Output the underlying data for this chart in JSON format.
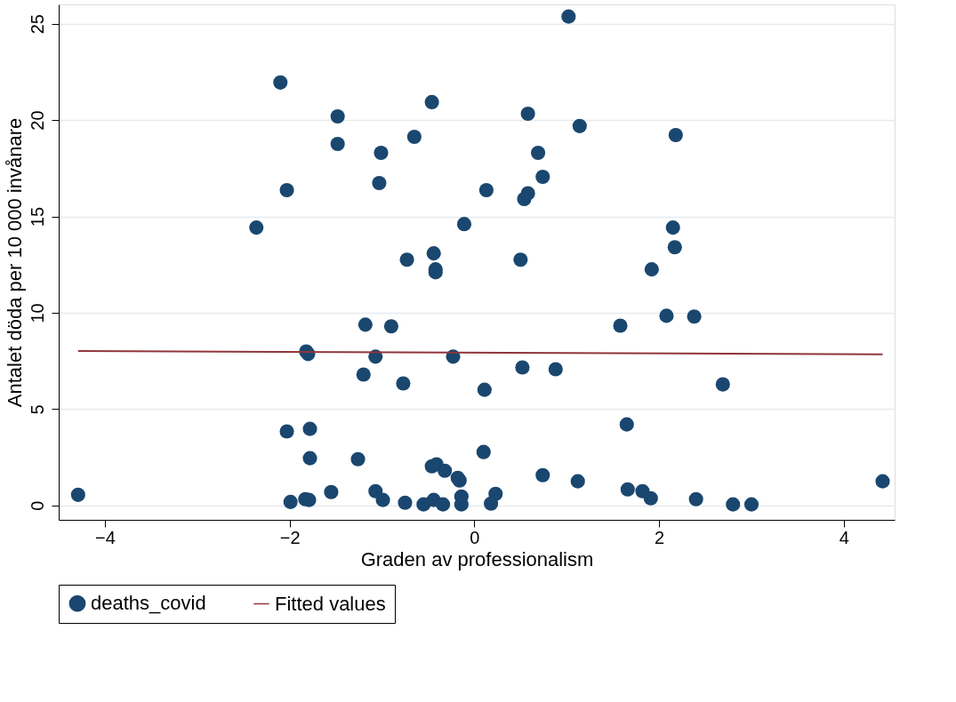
{
  "chart_data": {
    "type": "scatter",
    "xlabel": "Graden av professionalism",
    "ylabel": "Antalet döda per 10 000 invånare",
    "xlim": [
      -4.5,
      4.55
    ],
    "ylim": [
      -0.75,
      26
    ],
    "xticks": [
      -4,
      -2,
      0,
      2,
      4
    ],
    "yticks": [
      0,
      5,
      10,
      15,
      20,
      25
    ],
    "grid": "y",
    "legend": "bottom",
    "marker": "circle",
    "series": [
      {
        "name": "deaths_covid",
        "color": "#1a476f",
        "type": "scatter",
        "x": [
          -4.29,
          -2.1,
          -2.36,
          -2.03,
          -2.03,
          -1.99,
          -1.83,
          -1.79,
          -1.82,
          -1.8,
          -1.78,
          -1.78,
          -1.55,
          -1.48,
          -1.48,
          -1.26,
          -1.2,
          -1.18,
          -1.07,
          -1.07,
          -1.03,
          -1.01,
          -0.99,
          -0.9,
          -0.77,
          -0.75,
          -0.73,
          -0.65,
          -0.55,
          -0.46,
          -0.44,
          -0.42,
          -0.42,
          -0.46,
          -0.41,
          -0.44,
          -0.34,
          -0.32,
          -0.23,
          -0.18,
          -0.16,
          -0.14,
          -0.14,
          -0.11,
          0.1,
          0.11,
          0.13,
          0.18,
          0.23,
          0.5,
          0.52,
          0.54,
          0.58,
          0.58,
          0.69,
          0.74,
          0.74,
          0.88,
          1.02,
          1.12,
          1.14,
          1.58,
          1.65,
          1.66,
          1.82,
          1.91,
          1.92,
          2.08,
          2.15,
          2.17,
          2.18,
          2.38,
          2.4,
          2.69,
          2.8,
          3.0,
          4.42
        ],
        "values": [
          0.55,
          21.95,
          14.42,
          16.36,
          3.84,
          0.18,
          0.32,
          0.28,
          7.99,
          7.86,
          3.97,
          2.45,
          0.69,
          20.19,
          18.76,
          2.4,
          6.79,
          9.38,
          0.74,
          7.72,
          16.73,
          18.3,
          0.28,
          9.29,
          6.33,
          0.14,
          12.75,
          19.13,
          0.05,
          20.93,
          13.08,
          12.25,
          12.1,
          2.03,
          2.13,
          0.28,
          0.05,
          1.8,
          7.72,
          1.43,
          1.29,
          0.46,
          0.05,
          14.6,
          2.77,
          6.0,
          16.36,
          0.09,
          0.6,
          12.75,
          7.16,
          15.9,
          16.2,
          20.33,
          18.3,
          17.05,
          1.57,
          7.07,
          25.37,
          1.25,
          19.69,
          9.33,
          4.2,
          0.83,
          0.74,
          0.37,
          12.25,
          9.84,
          14.42,
          13.4,
          19.22,
          9.8,
          0.32,
          6.28,
          0.05,
          0.05,
          1.25
        ]
      },
      {
        "name": "Fitted values",
        "color": "#90353b",
        "type": "line",
        "line_style": "solid",
        "marker": "none",
        "x": [
          -4.29,
          4.42
        ],
        "values": [
          8.01,
          7.84
        ]
      }
    ]
  }
}
